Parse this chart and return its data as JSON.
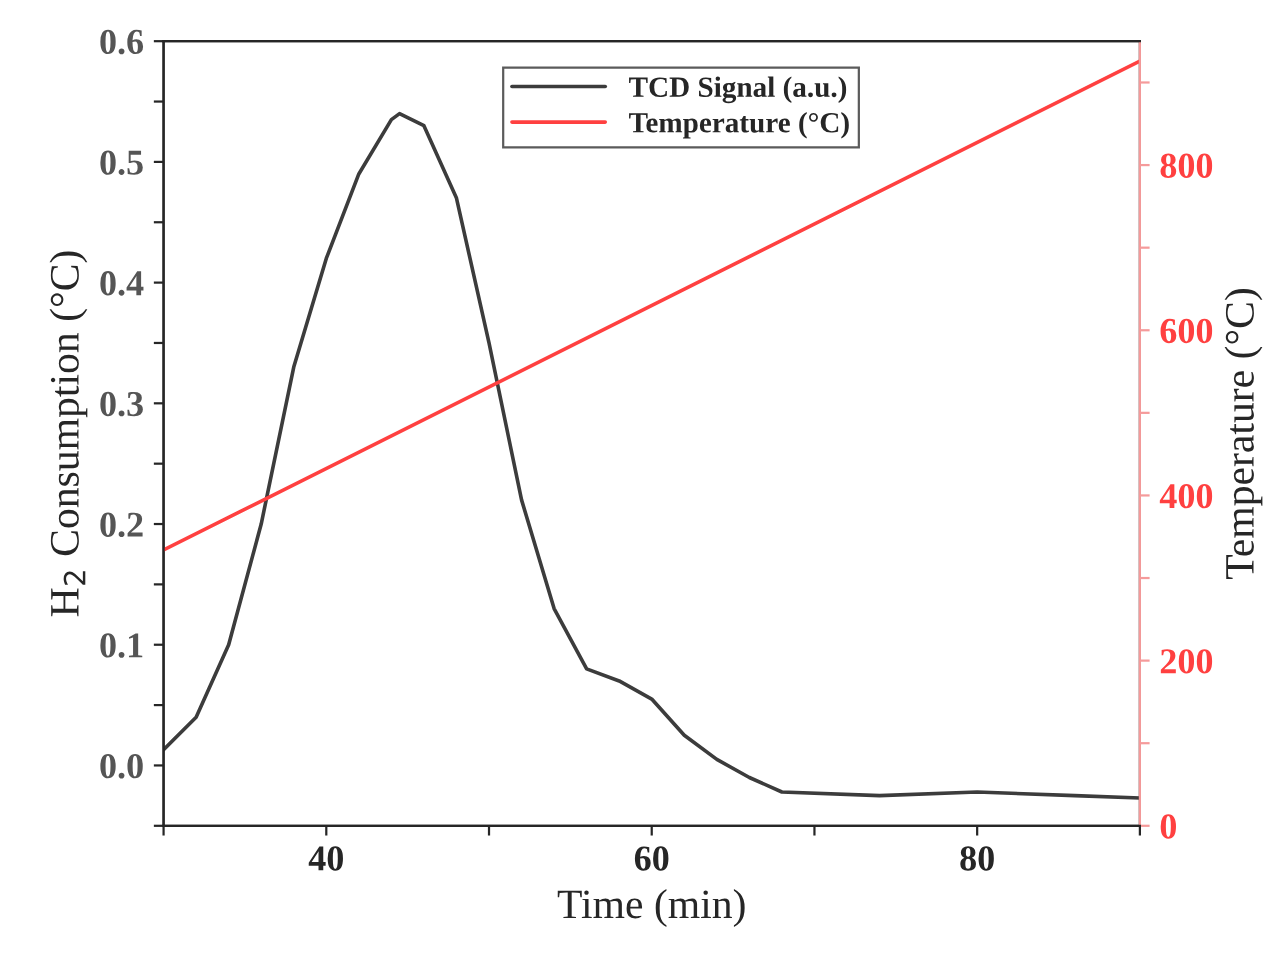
{
  "chart_data": {
    "type": "line",
    "xlabel": "Time (min)",
    "ylabel": "H$_{2}$ Consumption (°C)",
    "y2label": "Temperature (°C)",
    "xlim": [
      30,
      90
    ],
    "ylim": [
      -0.05,
      0.6
    ],
    "y2lim": [
      0,
      950
    ],
    "xticks": [
      {
        "value": 30,
        "label": null
      },
      40,
      {
        "value": 50,
        "label": null
      },
      60,
      {
        "value": 70,
        "label": null
      },
      80,
      {
        "value": 90,
        "label": null
      }
    ],
    "yticks": [
      {
        "value": -0.05,
        "label": null
      },
      {
        "value": 0.0,
        "label": "0.0"
      },
      {
        "value": 0.05,
        "label": null
      },
      0.1,
      {
        "value": 0.15,
        "label": null
      },
      0.2,
      {
        "value": 0.25,
        "label": null
      },
      0.3,
      {
        "value": 0.35,
        "label": null
      },
      0.4,
      {
        "value": 0.45,
        "label": null
      },
      0.5,
      {
        "value": 0.55,
        "label": null
      },
      0.6
    ],
    "y2ticks": [
      0,
      {
        "value": 100,
        "label": null
      },
      200,
      {
        "value": 300,
        "label": null
      },
      400,
      {
        "value": 500,
        "label": null
      },
      600,
      {
        "value": 700,
        "label": null
      },
      800,
      {
        "value": 900,
        "label": null
      }
    ],
    "legend": "top",
    "grid": false,
    "marker": "none",
    "line_style": "solid",
    "series": [
      {
        "name": "TCD Signal (a.u.)",
        "color": "#3c3c3c",
        "x": [
          30,
          32,
          34,
          36,
          38,
          40,
          42,
          44,
          44.5,
          46,
          48,
          50,
          52,
          54,
          56,
          58,
          60,
          62,
          64,
          66,
          68,
          74,
          80,
          86,
          90
        ],
        "values": [
          0.013,
          0.04,
          0.1,
          0.2,
          0.33,
          0.42,
          0.49,
          0.535,
          0.54,
          0.53,
          0.47,
          0.35,
          0.22,
          0.13,
          0.08,
          0.07,
          0.055,
          0.025,
          0.005,
          -0.01,
          -0.022,
          -0.025,
          -0.022,
          -0.025,
          -0.027
        ]
      },
      {
        "name": "Temperature (°C)",
        "color": "#ff4040",
        "axis": "y2",
        "x": [
          30,
          90
        ],
        "values": [
          334,
          926
        ]
      }
    ]
  }
}
